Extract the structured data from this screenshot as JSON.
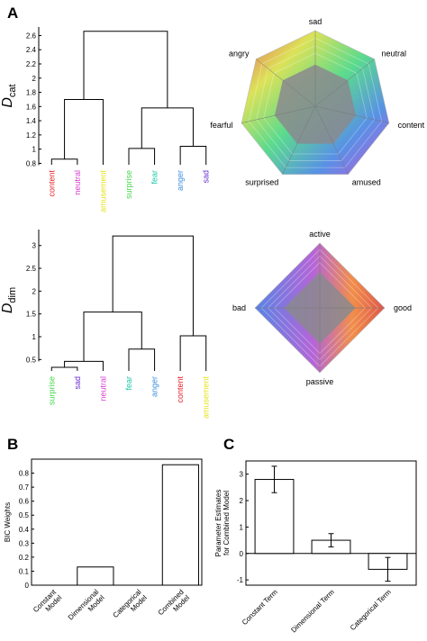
{
  "panel_labels": {
    "A": "A",
    "B": "B",
    "C": "C"
  },
  "chart_data": [
    {
      "type": "dendrogram",
      "id": "dcat",
      "ylabel_main": "D",
      "ylabel_sub": "cat",
      "yticks": [
        0.8,
        1,
        1.2,
        1.4,
        1.6,
        1.8,
        2,
        2.2,
        2.4,
        2.6
      ],
      "ylim": [
        0.78,
        2.72
      ],
      "leaves": [
        {
          "label": "content",
          "color": "#e8262b"
        },
        {
          "label": "neutral",
          "color": "#d63fcf"
        },
        {
          "label": "amusement",
          "color": "#e7e21c"
        },
        {
          "label": "surprise",
          "color": "#45d74a"
        },
        {
          "label": "fear",
          "color": "#1ac7a8"
        },
        {
          "label": "anger",
          "color": "#3b8fe0"
        },
        {
          "label": "sad",
          "color": "#6a2fd0"
        }
      ],
      "merges": [
        [
          0,
          1,
          0.86
        ],
        [
          3,
          4,
          1.01
        ],
        [
          5,
          6,
          1.04
        ],
        [
          7,
          2,
          1.7
        ],
        [
          8,
          9,
          1.58
        ],
        [
          10,
          11,
          2.66
        ]
      ]
    },
    {
      "type": "dendrogram",
      "id": "ddim",
      "ylabel_main": "D",
      "ylabel_sub": "dim",
      "yticks": [
        0.5,
        1,
        1.5,
        2,
        2.5,
        3
      ],
      "ylim": [
        0.25,
        3.35
      ],
      "leaves": [
        {
          "label": "surprise",
          "color": "#45d74a"
        },
        {
          "label": "sad",
          "color": "#6a2fd0"
        },
        {
          "label": "neutral",
          "color": "#d63fcf"
        },
        {
          "label": "fear",
          "color": "#1ac7a8"
        },
        {
          "label": "anger",
          "color": "#3b8fe0"
        },
        {
          "label": "content",
          "color": "#e8262b"
        },
        {
          "label": "amusement",
          "color": "#e7e21c"
        }
      ],
      "merges": [
        [
          0,
          1,
          0.33
        ],
        [
          7,
          2,
          0.46
        ],
        [
          3,
          4,
          0.73
        ],
        [
          5,
          6,
          1.02
        ],
        [
          8,
          9,
          1.54
        ],
        [
          11,
          10,
          3.21
        ]
      ]
    },
    {
      "type": "radar",
      "id": "radar-cat",
      "axes": [
        "sad",
        "neutral",
        "content",
        "amused",
        "surprised",
        "fearful",
        "angry"
      ]
    },
    {
      "type": "radar",
      "id": "radar-dim",
      "axes": [
        "active",
        "good",
        "passive",
        "bad"
      ]
    },
    {
      "type": "bar",
      "id": "bic",
      "ylabel": "BIC Weights",
      "categories": [
        "Constant Model",
        "Dimensional Model",
        "Categorical Model",
        "Combined Model"
      ],
      "tick_lines": [
        [
          "Constant",
          "Model"
        ],
        [
          "Dimensional",
          "Model"
        ],
        [
          "Categorical",
          "Model"
        ],
        [
          "Combined",
          "Model"
        ]
      ],
      "values": [
        0.0,
        0.13,
        0.0,
        0.86
      ],
      "yticks": [
        0,
        0.1,
        0.2,
        0.3,
        0.4,
        0.5,
        0.6,
        0.7,
        0.8
      ],
      "ytick_labels": [
        "0",
        "0.1",
        "0.2",
        "0.3",
        "0.4",
        "0.5",
        "0.6",
        "0.7",
        "0.8"
      ],
      "ylim": [
        0,
        0.9
      ]
    },
    {
      "type": "bar",
      "id": "estimates",
      "ylabel_lines": [
        "Parameter Estimates",
        "for Combined Model"
      ],
      "categories": [
        "Constant Term",
        "Dimensional Term",
        "Categorical Term"
      ],
      "values": [
        2.8,
        0.5,
        -0.6
      ],
      "errors": [
        0.5,
        0.25,
        0.45
      ],
      "yticks": [
        -1,
        0,
        1,
        2,
        3
      ],
      "ylim": [
        -1.2,
        3.5
      ]
    }
  ]
}
